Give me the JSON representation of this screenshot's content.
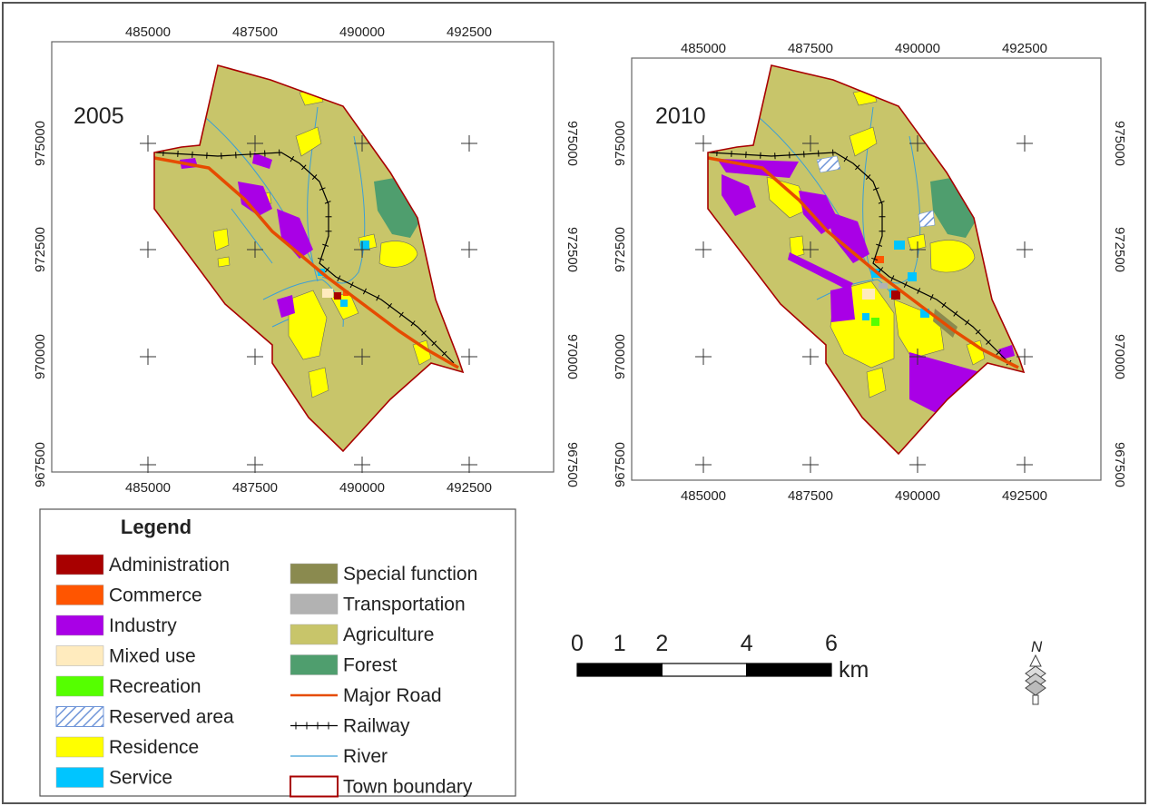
{
  "colors": {
    "Administration": "#a80000",
    "Commerce": "#ff5500",
    "Industry": "#a900e6",
    "Mixed use": "#ffebbe",
    "Recreation": "#55ff00",
    "Reserved area": "#bed2ff",
    "Residence": "#ffff00",
    "Service": "#00c5ff",
    "Special function": "#8a8a4f",
    "Transportation": "#b2b2b2",
    "Agriculture": "#c8c56a",
    "Forest": "#4f9e6e",
    "Major Road": "#e64b00",
    "Railway": "#000000",
    "River": "#3c9fd6",
    "Town boundary": "#a80000"
  },
  "maps": [
    {
      "year": "2005",
      "x_ticks": [
        "485000",
        "487500",
        "490000",
        "492500"
      ],
      "y_ticks": [
        "975000",
        "972500",
        "970000",
        "967500"
      ]
    },
    {
      "year": "2010",
      "x_ticks": [
        "485000",
        "487500",
        "490000",
        "492500"
      ],
      "y_ticks": [
        "975000",
        "972500",
        "970000",
        "967500"
      ]
    }
  ],
  "legend": {
    "title": "Legend",
    "col1": [
      {
        "label": "Administration",
        "symbol": "fill",
        "icon": "administration-swatch"
      },
      {
        "label": "Commerce",
        "symbol": "fill",
        "icon": "commerce-swatch"
      },
      {
        "label": "Industry",
        "symbol": "fill",
        "icon": "industry-swatch"
      },
      {
        "label": "Mixed use",
        "symbol": "fill",
        "icon": "mixed-use-swatch"
      },
      {
        "label": "Recreation",
        "symbol": "fill",
        "icon": "recreation-swatch"
      },
      {
        "label": "Reserved area",
        "symbol": "hatch",
        "icon": "reserved-area-swatch"
      },
      {
        "label": "Residence",
        "symbol": "fill",
        "icon": "residence-swatch"
      },
      {
        "label": "Service",
        "symbol": "fill",
        "icon": "service-swatch"
      }
    ],
    "col2": [
      {
        "label": "Special function",
        "symbol": "fill",
        "icon": "special-function-swatch"
      },
      {
        "label": "Transportation",
        "symbol": "fill",
        "icon": "transportation-swatch"
      },
      {
        "label": "Agriculture",
        "symbol": "fill",
        "icon": "agriculture-swatch"
      },
      {
        "label": "Forest",
        "symbol": "fill",
        "icon": "forest-swatch"
      },
      {
        "label": "Major Road",
        "symbol": "line",
        "icon": "major-road-line"
      },
      {
        "label": "Railway",
        "symbol": "rail",
        "icon": "railway-line"
      },
      {
        "label": "River",
        "symbol": "line",
        "icon": "river-line"
      },
      {
        "label": "Town boundary",
        "symbol": "outline",
        "icon": "town-boundary-swatch"
      }
    ]
  },
  "scalebar": {
    "labels": [
      "0",
      "1",
      "2",
      "4",
      "6"
    ],
    "unit": "km",
    "max_km": 6
  },
  "north_arrow": {
    "label": "N",
    "icon": "north-arrow-icon"
  }
}
